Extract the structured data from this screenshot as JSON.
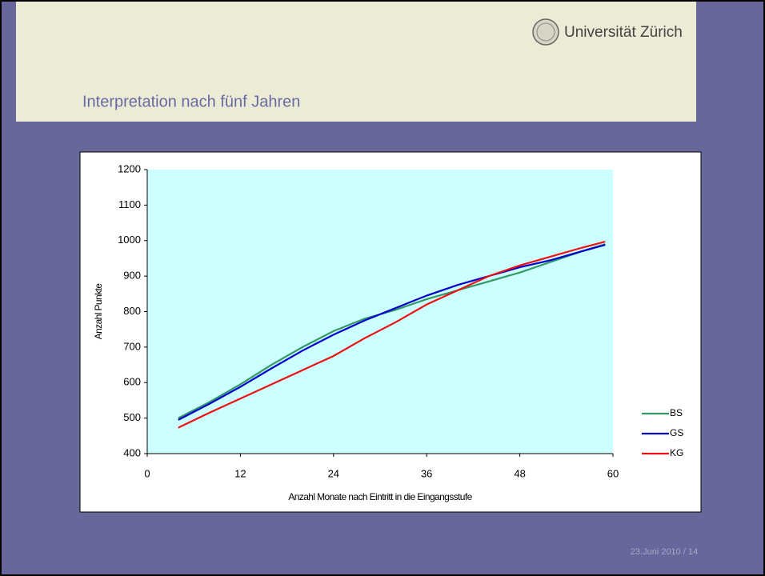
{
  "slide": {
    "logo_text": "Universität Zürich",
    "title": "Interpretation nach fünf Jahren",
    "footer": "23.Juni 2010 / 14"
  },
  "chart_data": {
    "type": "line",
    "x_label": "Anzahl Monate nach Eintritt in die Eingangsstufe",
    "y_label": "Anzahl Punkte",
    "x": [
      4,
      8,
      12,
      16,
      20,
      24,
      28,
      32,
      36,
      40,
      44,
      48,
      52,
      56,
      59
    ],
    "series": [
      {
        "name": "BS",
        "color": "#339966",
        "values": [
          500,
          545,
          595,
          650,
          700,
          745,
          780,
          805,
          835,
          860,
          885,
          910,
          940,
          970,
          990
        ]
      },
      {
        "name": "GS",
        "color": "#0000cc",
        "values": [
          495,
          540,
          588,
          640,
          690,
          735,
          775,
          810,
          845,
          875,
          900,
          925,
          945,
          970,
          988
        ]
      },
      {
        "name": "KG",
        "color": "#ee1111",
        "values": [
          473,
          515,
          555,
          595,
          635,
          675,
          725,
          770,
          820,
          860,
          900,
          930,
          955,
          980,
          997
        ]
      }
    ],
    "xlim": [
      0,
      60
    ],
    "xticks": [
      0,
      12,
      24,
      36,
      48,
      60
    ],
    "ylim": [
      400,
      1200
    ],
    "yticks": [
      400,
      500,
      600,
      700,
      800,
      900,
      1000,
      1100,
      1200
    ],
    "grid": false,
    "legend": "right",
    "plot_background": "#ccffff"
  }
}
